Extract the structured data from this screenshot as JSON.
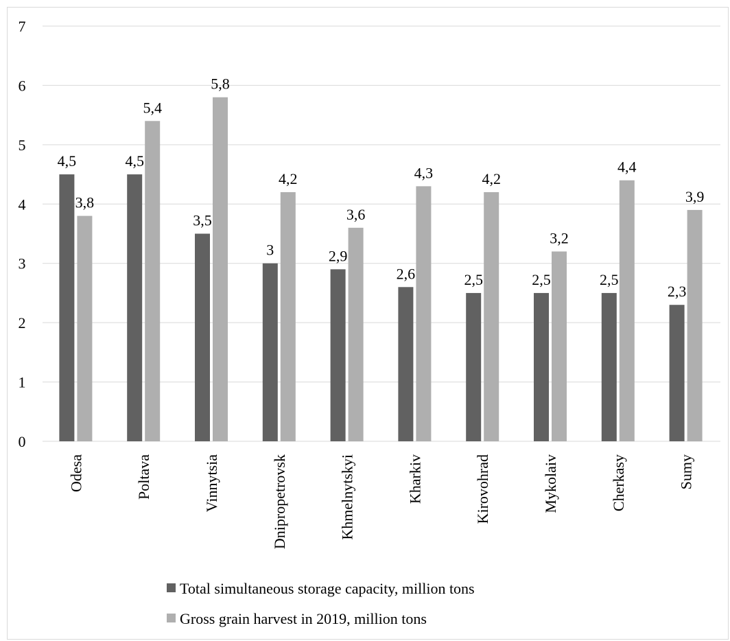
{
  "chart_data": {
    "type": "bar",
    "categories": [
      "Odesa",
      "Poltava",
      "Vinnytsia",
      "Dnipropetrovsk",
      "Khmelnytskyi",
      "Kharkiv",
      "Kirovohrad",
      "Mykolaiv",
      "Cherkasy",
      "Sumy"
    ],
    "series": [
      {
        "name": "Total simultaneous storage capacity, million tons",
        "values": [
          4.5,
          4.5,
          3.5,
          3,
          2.9,
          2.6,
          2.5,
          2.5,
          2.5,
          2.3
        ],
        "labels": [
          "4,5",
          "4,5",
          "3,5",
          "3",
          "2,9",
          "2,6",
          "2,5",
          "2,5",
          "2,5",
          "2,3"
        ],
        "color": "#616161"
      },
      {
        "name": "Gross grain harvest in 2019, million tons",
        "values": [
          3.8,
          5.4,
          5.8,
          4.2,
          3.6,
          4.3,
          4.2,
          3.2,
          4.4,
          3.9
        ],
        "labels": [
          "3,8",
          "5,4",
          "5,8",
          "4,2",
          "3,6",
          "4,3",
          "4,2",
          "3,2",
          "4,4",
          "3,9"
        ],
        "color": "#afafaf"
      }
    ],
    "yticks": [
      "0",
      "1",
      "2",
      "3",
      "4",
      "5",
      "6",
      "7"
    ],
    "ylim": [
      0,
      7
    ],
    "grid": true,
    "legend_position": "bottom",
    "gridline_color": "#d9d9d9"
  }
}
